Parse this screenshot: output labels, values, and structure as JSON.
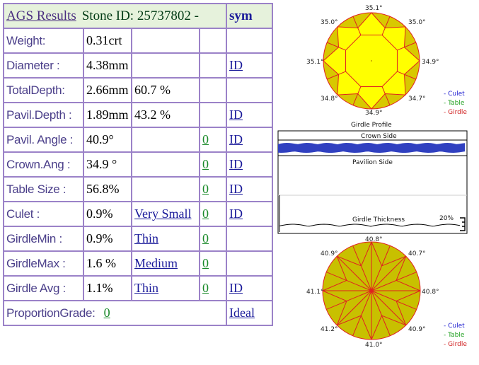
{
  "header": {
    "title": "AGS Results",
    "stone_id": "Stone ID:  25737802 -",
    "sym": "sym"
  },
  "rows": [
    {
      "label": "Weight:",
      "value": "0.31crt",
      "value2": "",
      "grade": "",
      "sym": ""
    },
    {
      "label": "Diameter :",
      "value": "4.38mm",
      "value2": "",
      "grade": "",
      "sym": "ID"
    },
    {
      "label": "TotalDepth:",
      "value": "2.66mm",
      "value2": "60.7 %",
      "grade": "",
      "sym": ""
    },
    {
      "label": "Pavil.Depth :",
      "value": "1.89mm",
      "value2": "43.2 %",
      "grade": "",
      "sym": "ID"
    },
    {
      "label": "Pavil. Angle :",
      "value": "40.9°",
      "value2": "",
      "grade": "0",
      "sym": "ID "
    },
    {
      "label": "Crown.Ang :",
      "value": "34.9 °",
      "value2": "",
      "grade": "0",
      "sym": "ID"
    },
    {
      "label": "Table Size :",
      "value": "56.8%",
      "value2": "",
      "grade": "0",
      "sym": "ID"
    },
    {
      "label": "Culet :",
      "value": "0.9%",
      "value2": "Very Small",
      "grade": "0",
      "sym": "ID"
    },
    {
      "label": "GirdleMin :",
      "value": "0.9%",
      "value2": "Thin",
      "grade": "0",
      "sym": ""
    },
    {
      "label": "GirdleMax :",
      "value": "1.6 %",
      "value2": "Medium ",
      "grade": "0",
      "sym": ""
    },
    {
      "label": "Girdle Avg :",
      "value": "1.1%",
      "value2": "Thin ",
      "grade": "0 ",
      "sym": "ID "
    }
  ],
  "grade_row": {
    "label": "ProportionGrade:",
    "value": "0",
    "sym": "Ideal "
  },
  "crown_diagram": {
    "angles": {
      "top": "35.1°",
      "top_left": "35.0°",
      "top_right": "35.0°",
      "left": "35.1°",
      "right": "34.9°",
      "bottom_left": "34.8°",
      "bottom_right": "34.7°",
      "bottom": "34.9°"
    },
    "caption": "Girdle Profile",
    "fill_color": "#ffff00",
    "facet_color": "#d8c800",
    "line_color": "#e02020"
  },
  "legend": {
    "culet": "- Culet",
    "table": "- Table",
    "girdle": "- Girdle",
    "culet_color": "#2020d0",
    "table_color": "#20a020",
    "girdle_color": "#d02020"
  },
  "girdle_profile": {
    "crown_side": "Crown Side",
    "pavilion_side": "Pavilion Side",
    "thickness": "Girdle Thickness",
    "percent": "20%",
    "profile_color": "#3040c0"
  },
  "pavilion_diagram": {
    "angles": {
      "top": "40.8°",
      "top_left": "40.9°",
      "top_right": "40.7°",
      "left": "41.1°",
      "right": "40.8°",
      "bottom_left": "41.2°",
      "bottom_right": "40.9°",
      "bottom": "41.0°"
    },
    "fill_color": "#c8c000",
    "line_color": "#e02020"
  }
}
